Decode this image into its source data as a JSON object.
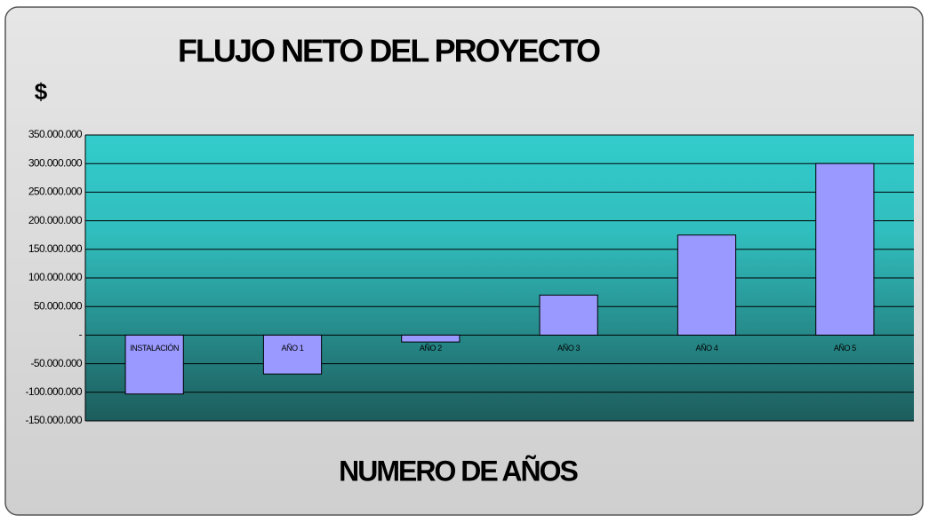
{
  "chart_data": {
    "type": "bar",
    "title": "FLUJO NETO DEL PROYECTO",
    "y_label": "$",
    "x_label": "NUMERO DE AÑOS",
    "categories": [
      "INSTALACIÓN",
      "AÑO 1",
      "AÑO 2",
      "AÑO 3",
      "AÑO 4",
      "AÑO 5"
    ],
    "values": [
      -103000000,
      -68000000,
      -12000000,
      70000000,
      175000000,
      300000000
    ],
    "color": "#9999ff",
    "ylim": [
      -150000000,
      350000000
    ],
    "yticks": [
      {
        "value": -150000000,
        "label": "-150.000.000"
      },
      {
        "value": -100000000,
        "label": "-100.000.000"
      },
      {
        "value": -50000000,
        "label": "-50.000.000"
      },
      {
        "value": 0,
        "label": "-"
      },
      {
        "value": 50000000,
        "label": "50.000.000"
      },
      {
        "value": 100000000,
        "label": "100.000.000"
      },
      {
        "value": 150000000,
        "label": "150.000.000"
      },
      {
        "value": 200000000,
        "label": "200.000.000"
      },
      {
        "value": 250000000,
        "label": "250.000.000"
      },
      {
        "value": 300000000,
        "label": "300.000.000"
      },
      {
        "value": 350000000,
        "label": "350.000.000"
      }
    ],
    "grid": true
  }
}
